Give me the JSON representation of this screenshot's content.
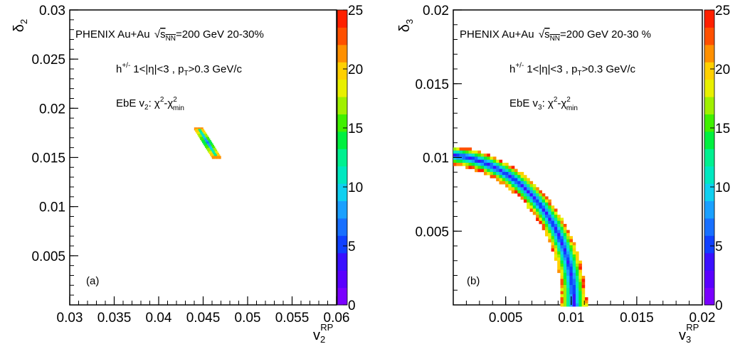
{
  "chart_data": [
    {
      "type": "heatmap",
      "panel_label": "(a)",
      "ylabel": "δ2",
      "xlabel": "v2RP",
      "xlim": [
        0.03,
        0.06
      ],
      "ylim": [
        0.0,
        0.03
      ],
      "x_ticks": [
        "0.03",
        "0.035",
        "0.04",
        "0.045",
        "0.05",
        "0.055",
        "0.06"
      ],
      "y_ticks": [
        "0.005",
        "0.01",
        "0.015",
        "0.02",
        "0.025",
        "0.03"
      ],
      "colorbar": {
        "min": 0,
        "max": 25,
        "ticks": [
          "0",
          "5",
          "10",
          "15",
          "20",
          "25"
        ]
      },
      "annotations": {
        "experiment": "PHENIX Au+Au",
        "energy": "=200 GeV 20-30%",
        "selection": "1<|η|<3 , p",
        "pt_cut": ">0.3 GeV/c",
        "method": "EbE v",
        "chi": "χ²-χ²"
      },
      "contour": {
        "description": "narrow valley of chi-square minimum",
        "points": [
          {
            "x": 0.0445,
            "y": 0.0179
          },
          {
            "x": 0.0465,
            "y": 0.015
          }
        ]
      }
    },
    {
      "type": "heatmap",
      "panel_label": "(b)",
      "ylabel": "δ3",
      "xlabel": "v3RP",
      "xlim": [
        0.001,
        0.02
      ],
      "ylim": [
        0.0,
        0.02
      ],
      "x_ticks": [
        "0.005",
        "0.01",
        "0.015",
        "0.02"
      ],
      "y_ticks": [
        "0.005",
        "0.01",
        "0.015",
        "0.02"
      ],
      "colorbar": {
        "min": 0,
        "max": 25,
        "ticks": [
          "0",
          "5",
          "10",
          "15",
          "20",
          "25"
        ]
      },
      "annotations": {
        "experiment": "PHENIX Au+Au",
        "energy": "=200 GeV 20-30 %",
        "selection": "1<|η|<3 , p",
        "pt_cut": ">0.3 GeV/c",
        "method": "EbE v",
        "chi": "χ²-χ²"
      },
      "contour": {
        "description": "quarter-circle valley of chi-square minimum",
        "radius": 0.0102,
        "center": [
          0.0,
          0.0
        ]
      }
    }
  ],
  "colorscale": [
    "#7a00ff",
    "#5a00ff",
    "#3a10ff",
    "#1040ff",
    "#1870ff",
    "#1aa0ff",
    "#10d0f0",
    "#00e8c0",
    "#00f090",
    "#00f040",
    "#40f000",
    "#a0f000",
    "#e8f000",
    "#ffd000",
    "#ff9000",
    "#ff5000",
    "#ff2000"
  ]
}
